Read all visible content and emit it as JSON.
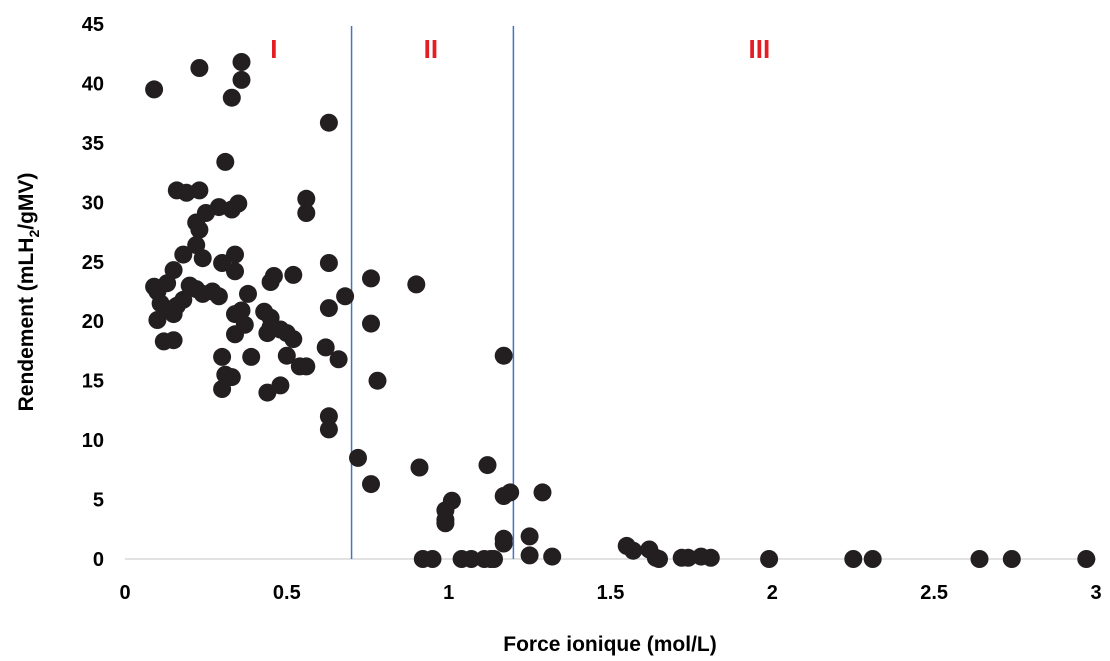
{
  "chart_data": {
    "type": "scatter",
    "xlabel": "Force ionique (mol/L)",
    "ylabel": "Rendement (mLH2/gMV)",
    "ylabel_parts": {
      "pre": "Rendement (mLH",
      "sub": "2",
      "post": "/gMV)"
    },
    "xlim": [
      0,
      3
    ],
    "ylim": [
      0,
      45
    ],
    "x_ticks": [
      0,
      0.5,
      1,
      1.5,
      2,
      2.5,
      3
    ],
    "x_tick_labels": [
      "0",
      "0.5",
      "1",
      "1.5",
      "2",
      "2.5",
      "3"
    ],
    "y_ticks": [
      0,
      5,
      10,
      15,
      20,
      25,
      30,
      35,
      40,
      45
    ],
    "y_tick_labels": [
      "0",
      "5",
      "10",
      "15",
      "20",
      "25",
      "30",
      "35",
      "40",
      "45"
    ],
    "grid": false,
    "marker_color": "#231f20",
    "vertical_lines": [
      0.7,
      1.2
    ],
    "vertical_line_color": "#4472c4",
    "zone_label_color": "#e41e25",
    "zones": [
      {
        "label": "I",
        "x": 0.46
      },
      {
        "label": "II",
        "x": 0.945
      },
      {
        "label": "III",
        "x": 1.96
      }
    ],
    "points": [
      [
        0.09,
        39.5
      ],
      [
        0.23,
        41.3
      ],
      [
        0.36,
        41.8
      ],
      [
        0.36,
        40.3
      ],
      [
        0.33,
        38.8
      ],
      [
        0.63,
        36.7
      ],
      [
        0.31,
        33.4
      ],
      [
        0.56,
        30.3
      ],
      [
        0.56,
        29.1
      ],
      [
        0.16,
        31.0
      ],
      [
        0.19,
        30.8
      ],
      [
        0.23,
        31.0
      ],
      [
        0.35,
        29.9
      ],
      [
        0.29,
        29.6
      ],
      [
        0.33,
        29.4
      ],
      [
        0.25,
        29.1
      ],
      [
        0.22,
        28.3
      ],
      [
        0.23,
        27.7
      ],
      [
        0.18,
        25.6
      ],
      [
        0.22,
        26.4
      ],
      [
        0.24,
        25.3
      ],
      [
        0.34,
        25.6
      ],
      [
        0.3,
        24.9
      ],
      [
        0.63,
        24.9
      ],
      [
        0.34,
        24.2
      ],
      [
        0.15,
        24.3
      ],
      [
        0.46,
        23.8
      ],
      [
        0.45,
        23.3
      ],
      [
        0.52,
        23.9
      ],
      [
        0.76,
        23.6
      ],
      [
        0.9,
        23.1
      ],
      [
        0.09,
        22.9
      ],
      [
        0.1,
        22.5
      ],
      [
        0.13,
        23.2
      ],
      [
        0.2,
        23.0
      ],
      [
        0.22,
        22.7
      ],
      [
        0.24,
        22.3
      ],
      [
        0.27,
        22.5
      ],
      [
        0.29,
        22.1
      ],
      [
        0.38,
        22.3
      ],
      [
        0.68,
        22.1
      ],
      [
        0.11,
        21.5
      ],
      [
        0.14,
        21.0
      ],
      [
        0.16,
        21.3
      ],
      [
        0.18,
        21.8
      ],
      [
        0.63,
        21.1
      ],
      [
        0.1,
        20.1
      ],
      [
        0.15,
        20.6
      ],
      [
        0.34,
        20.6
      ],
      [
        0.36,
        20.9
      ],
      [
        0.43,
        20.8
      ],
      [
        0.45,
        20.3
      ],
      [
        0.37,
        19.7
      ],
      [
        0.76,
        19.8
      ],
      [
        0.45,
        19.5
      ],
      [
        0.48,
        19.3
      ],
      [
        0.44,
        19.0
      ],
      [
        0.5,
        19.0
      ],
      [
        0.34,
        18.9
      ],
      [
        0.12,
        18.3
      ],
      [
        0.15,
        18.4
      ],
      [
        0.52,
        18.5
      ],
      [
        0.62,
        17.8
      ],
      [
        0.5,
        17.1
      ],
      [
        0.3,
        17.0
      ],
      [
        0.39,
        17.0
      ],
      [
        0.66,
        16.8
      ],
      [
        0.54,
        16.2
      ],
      [
        0.56,
        16.2
      ],
      [
        1.17,
        17.1
      ],
      [
        0.31,
        15.5
      ],
      [
        0.33,
        15.3
      ],
      [
        0.78,
        15.0
      ],
      [
        0.48,
        14.6
      ],
      [
        0.3,
        14.3
      ],
      [
        0.44,
        14.0
      ],
      [
        0.63,
        12.0
      ],
      [
        0.63,
        10.9
      ],
      [
        0.72,
        8.5
      ],
      [
        0.91,
        7.7
      ],
      [
        1.12,
        7.9
      ],
      [
        0.76,
        6.3
      ],
      [
        1.01,
        4.9
      ],
      [
        0.99,
        4.1
      ],
      [
        0.99,
        3.3
      ],
      [
        0.99,
        3.0
      ],
      [
        1.17,
        5.3
      ],
      [
        1.19,
        5.6
      ],
      [
        1.29,
        5.6
      ],
      [
        1.25,
        1.9
      ],
      [
        1.17,
        1.7
      ],
      [
        1.17,
        1.3
      ],
      [
        0.92,
        0.0
      ],
      [
        0.95,
        0.0
      ],
      [
        1.04,
        0.0
      ],
      [
        1.07,
        0.0
      ],
      [
        1.11,
        0.0
      ],
      [
        1.13,
        0.0
      ],
      [
        1.14,
        0.0
      ],
      [
        1.25,
        0.3
      ],
      [
        1.32,
        0.2
      ],
      [
        1.55,
        1.1
      ],
      [
        1.57,
        0.7
      ],
      [
        1.62,
        0.8
      ],
      [
        1.64,
        0.1
      ],
      [
        1.65,
        0.0
      ],
      [
        1.72,
        0.1
      ],
      [
        1.74,
        0.1
      ],
      [
        1.78,
        0.2
      ],
      [
        1.81,
        0.1
      ],
      [
        1.99,
        0.0
      ],
      [
        2.25,
        0.0
      ],
      [
        2.31,
        0.0
      ],
      [
        2.64,
        0.0
      ],
      [
        2.74,
        0.0
      ],
      [
        2.97,
        0.0
      ]
    ]
  }
}
